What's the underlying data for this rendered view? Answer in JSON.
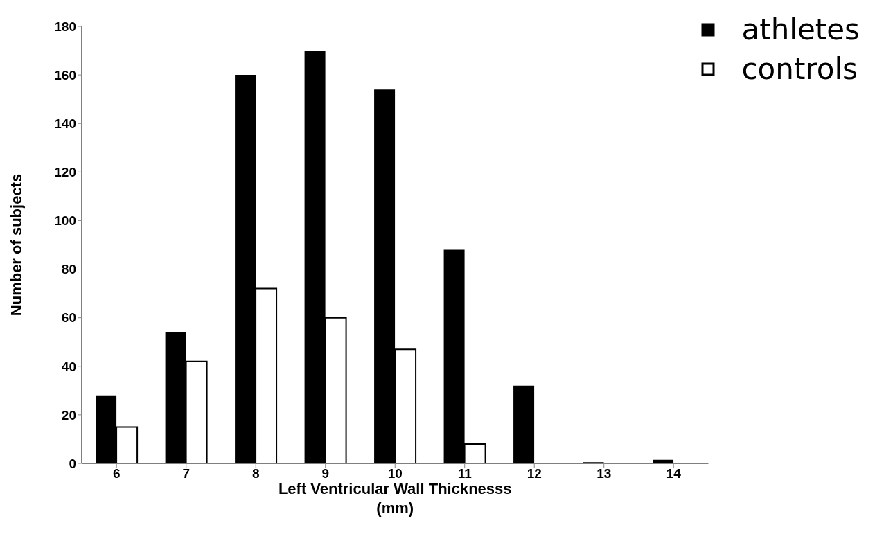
{
  "chart_data": {
    "type": "bar",
    "xlabel": "Left Ventricular Wall Thicknesss\n(mm)",
    "ylabel": "Number of subjects",
    "categories": [
      "6",
      "7",
      "8",
      "9",
      "10",
      "11",
      "12",
      "13",
      "14"
    ],
    "series": [
      {
        "name": "athletes",
        "color": "#000000",
        "values": [
          28,
          54,
          160,
          170,
          154,
          88,
          32,
          0.5,
          1.5
        ]
      },
      {
        "name": "controls",
        "color": "#ffffff",
        "values": [
          15,
          42,
          72,
          60,
          47,
          8,
          0,
          0,
          0
        ]
      }
    ],
    "ylim": [
      0,
      180
    ],
    "yticks": [
      0,
      20,
      40,
      60,
      80,
      100,
      120,
      140,
      160,
      180
    ],
    "grid": false,
    "legend": "top right"
  }
}
